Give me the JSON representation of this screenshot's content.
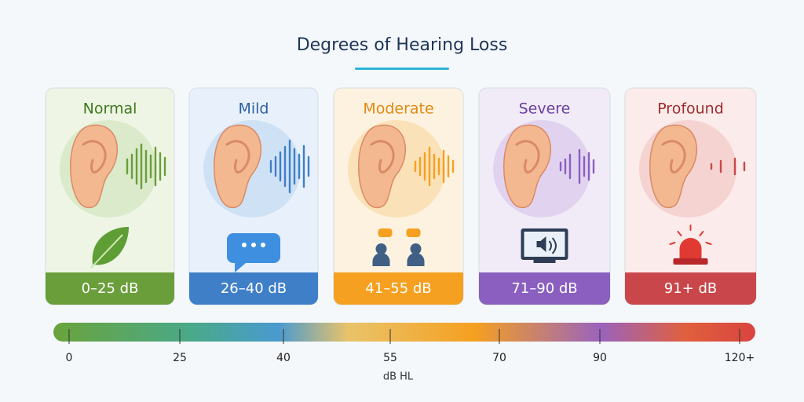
{
  "title": "Degrees of Hearing Loss",
  "cards": [
    {
      "label": "Normal",
      "range": "0–25 dB"
    },
    {
      "label": "Mild",
      "range": "26–40 dB"
    },
    {
      "label": "Moderate",
      "range": "41–55 dB"
    },
    {
      "label": "Severe",
      "range": "71–90 dB"
    },
    {
      "label": "Profound",
      "range": "91+ dB"
    }
  ],
  "scale": {
    "ticks": [
      "0",
      "25",
      "40",
      "55",
      "70",
      "90",
      "120+"
    ],
    "axis_label": "dB HL"
  }
}
